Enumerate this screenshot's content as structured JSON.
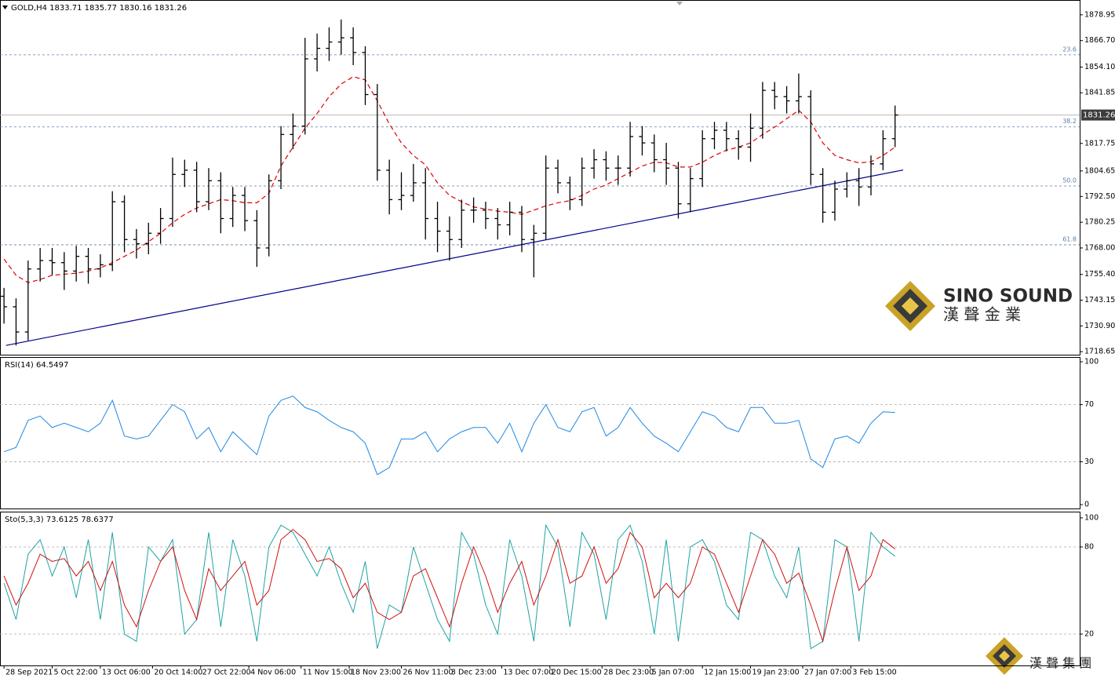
{
  "chart_data": [
    {
      "type": "ohlc",
      "title": "GOLD,H4  1833.71 1835.77 1830.16 1831.26",
      "color": "#000000",
      "x": [
        1,
        4,
        7,
        10,
        13,
        16,
        19,
        22,
        25,
        28,
        31,
        34,
        37,
        40,
        43,
        46,
        49,
        52,
        55,
        58,
        61,
        64,
        67,
        70,
        73,
        76,
        79,
        82,
        85,
        88,
        91,
        94,
        97,
        100,
        103,
        106,
        109,
        112,
        115,
        118,
        121,
        124,
        127,
        130,
        133,
        136,
        139,
        142,
        145,
        148,
        151,
        154,
        157,
        160,
        163,
        166,
        169,
        172,
        175,
        178,
        181,
        184,
        187,
        190,
        193,
        196,
        199,
        202,
        205,
        208,
        211,
        214,
        217,
        220,
        223
      ],
      "open": [
        1745,
        1740,
        1728,
        1758,
        1762,
        1761,
        1757,
        1764,
        1758,
        1760,
        1790,
        1772,
        1770,
        1775,
        1782,
        1803,
        1805,
        1790,
        1800,
        1782,
        1793,
        1781,
        1768,
        1800,
        1822,
        1826,
        1858,
        1863,
        1866,
        1868,
        1861,
        1841,
        1805,
        1791,
        1793,
        1799,
        1782,
        1776,
        1772,
        1786,
        1786,
        1782,
        1779,
        1785,
        1772,
        1775,
        1806,
        1799,
        1791,
        1806,
        1810,
        1806,
        1806,
        1821,
        1818,
        1810,
        1806,
        1789,
        1801,
        1820,
        1824,
        1820,
        1816,
        1825,
        1843,
        1840,
        1838,
        1840,
        1803,
        1785,
        1796,
        1800,
        1797,
        1808,
        1820
      ],
      "high": [
        1749,
        1744,
        1762,
        1768,
        1768,
        1766,
        1769,
        1768,
        1765,
        1795,
        1793,
        1777,
        1780,
        1787,
        1811,
        1810,
        1809,
        1806,
        1804,
        1797,
        1797,
        1786,
        1803,
        1826,
        1832,
        1868,
        1870,
        1873,
        1876.7,
        1873,
        1864,
        1846,
        1810,
        1804,
        1808,
        1806,
        1790,
        1783,
        1791,
        1792,
        1790,
        1787,
        1790,
        1788,
        1779,
        1812,
        1810,
        1802,
        1811,
        1815,
        1814,
        1812,
        1828,
        1826,
        1822,
        1818,
        1809,
        1806,
        1824,
        1828,
        1828,
        1824,
        1832,
        1847,
        1847,
        1845,
        1851,
        1843,
        1806,
        1800,
        1804,
        1806,
        1812,
        1824,
        1835.77
      ],
      "low": [
        1732,
        1721.6,
        1724,
        1752,
        1755,
        1748,
        1752,
        1751,
        1754,
        1757,
        1766,
        1763,
        1765,
        1770,
        1778,
        1797,
        1785,
        1786,
        1775,
        1778,
        1776,
        1759,
        1764,
        1796,
        1815,
        1822,
        1852,
        1857,
        1860,
        1855,
        1836,
        1800,
        1784,
        1786,
        1790,
        1772,
        1766,
        1762,
        1768,
        1780,
        1777,
        1772,
        1774,
        1766,
        1754,
        1772,
        1794,
        1786,
        1788,
        1801,
        1800,
        1798,
        1802,
        1812,
        1804,
        1798,
        1782,
        1785,
        1797,
        1815,
        1814,
        1810,
        1809,
        1820,
        1834,
        1832,
        1832,
        1798,
        1780,
        1781,
        1792,
        1788,
        1793,
        1805,
        1816
      ],
      "close": [
        1740,
        1728,
        1758,
        1762,
        1761,
        1757,
        1764,
        1758,
        1760,
        1790,
        1772,
        1770,
        1775,
        1782,
        1803,
        1805,
        1790,
        1800,
        1782,
        1793,
        1781,
        1768,
        1800,
        1822,
        1826,
        1858,
        1863,
        1866,
        1868,
        1861,
        1841,
        1805,
        1791,
        1793,
        1799,
        1782,
        1776,
        1772,
        1786,
        1786,
        1782,
        1779,
        1785,
        1772,
        1775,
        1806,
        1799,
        1791,
        1806,
        1810,
        1806,
        1806,
        1821,
        1818,
        1810,
        1806,
        1789,
        1801,
        1820,
        1824,
        1820,
        1816,
        1825,
        1843,
        1840,
        1838,
        1840,
        1803,
        1785,
        1796,
        1800,
        1797,
        1808,
        1820,
        1831.26
      ],
      "moving_average": [
        1762.7,
        1755,
        1751.5,
        1753,
        1755,
        1755.5,
        1756,
        1757,
        1758.5,
        1761,
        1764,
        1767,
        1771,
        1775,
        1780,
        1784,
        1787,
        1789,
        1791,
        1790.5,
        1789.5,
        1789.5,
        1794,
        1807,
        1816,
        1825,
        1832,
        1840,
        1846,
        1849.5,
        1848,
        1838,
        1827,
        1818,
        1812,
        1807.5,
        1799,
        1793,
        1790,
        1787.5,
        1786.5,
        1785.5,
        1785,
        1784,
        1786,
        1788,
        1789.5,
        1790.5,
        1793,
        1796,
        1798,
        1801,
        1804,
        1807,
        1808.8,
        1808.5,
        1806.5,
        1806.5,
        1808.8,
        1812,
        1814.5,
        1816,
        1818,
        1822,
        1825.5,
        1829.5,
        1833.5,
        1828,
        1818,
        1812,
        1810,
        1808.5,
        1809,
        1812,
        1816
      ],
      "moving_average_color": "#dd0000",
      "trendline": {
        "x": [
          1.5,
          225
        ],
        "y": [
          1721.6,
          1805.1
        ],
        "color": "#00008b"
      },
      "levels": [
        {
          "value": 1859.9,
          "label": "23.6"
        },
        {
          "value": 1825.6,
          "label": "38.2"
        },
        {
          "value": 1797.5,
          "label": "50.0"
        },
        {
          "value": 1769.5,
          "label": "61.8"
        }
      ],
      "last_price": 1831.26,
      "xlim": [
        0,
        269
      ],
      "ylim": [
        1717.2,
        1886.0
      ],
      "yticks": [
        1878.95,
        {
          "value": 1866.7,
          "label": "1866.70"
        },
        {
          "value": 1854.1,
          "label": "1854.10"
        },
        1841.85,
        1817.75,
        1804.65,
        {
          "value": 1792.5,
          "label": "1792.50"
        },
        1780.25,
        {
          "value": 1768,
          "label": "1768.00"
        },
        {
          "value": 1755.4,
          "label": "1755.40"
        },
        1743.15,
        {
          "value": 1730.9,
          "label": "1730.90"
        },
        1718.65
      ],
      "xticks": [
        {
          "value": 1,
          "label": "28 Sep 2021"
        },
        {
          "value": 13,
          "label": "5 Oct 22:00"
        },
        {
          "value": 25,
          "label": "13 Oct 06:00"
        },
        {
          "value": 38,
          "label": "20 Oct 14:00"
        },
        {
          "value": 50,
          "label": "27 Oct 22:00"
        },
        {
          "value": 62,
          "label": "4 Nov 06:00"
        },
        {
          "value": 75,
          "label": "11 Nov 15:00"
        },
        {
          "value": 87,
          "label": "18 Nov 23:00"
        },
        {
          "value": 100,
          "label": "26 Nov 11:00"
        },
        {
          "value": 112,
          "label": "3 Dec 23:00"
        },
        {
          "value": 125,
          "label": "13 Dec 07:00"
        },
        {
          "value": 137,
          "label": "20 Dec 15:00"
        },
        {
          "value": 150,
          "label": "28 Dec 23:00"
        },
        {
          "value": 162,
          "label": "5 Jan 07:00"
        },
        {
          "value": 175,
          "label": "12 Jan 15:00"
        },
        {
          "value": 187,
          "label": "19 Jan 23:00"
        },
        {
          "value": 200,
          "label": "27 Jan 07:00"
        },
        {
          "value": 212,
          "label": "3 Feb 15:00"
        }
      ]
    },
    {
      "type": "line",
      "title": "RSI(14) 64.5497",
      "ylim": [
        -2.7,
        103.3
      ],
      "yticks": [
        0,
        30,
        70,
        100
      ],
      "levels": [
        30,
        70
      ],
      "series": [
        {
          "color": "#1e88e5",
          "values": [
            37,
            40,
            59,
            62,
            54,
            57,
            54,
            51,
            57,
            73,
            48,
            46,
            48,
            59,
            70,
            65,
            46,
            54,
            37,
            51,
            43,
            35,
            62,
            73,
            76,
            68,
            65,
            59,
            54,
            51,
            43,
            21,
            26,
            46,
            46,
            51,
            37,
            46,
            51,
            54,
            54,
            43,
            57,
            37,
            57,
            70,
            54,
            51,
            65,
            68,
            48,
            54,
            68,
            57,
            48,
            43,
            37,
            51,
            65,
            62,
            54,
            51,
            68,
            68,
            57,
            57,
            59,
            32,
            26,
            46,
            48,
            43,
            57,
            65,
            64.5
          ]
        }
      ]
    },
    {
      "type": "line",
      "title": "Sto(5,3,3) 73.6125 78.6377",
      "ylim": [
        -1.6,
        104.3
      ],
      "yticks": [
        20,
        80,
        100
      ],
      "levels": [
        20,
        80
      ],
      "series": [
        {
          "color": "#1fa3a3",
          "values": [
            55,
            30,
            75,
            85,
            60,
            80,
            45,
            85,
            30,
            90,
            20,
            15,
            80,
            70,
            85,
            20,
            30,
            90,
            25,
            85,
            60,
            15,
            80,
            95,
            90,
            75,
            60,
            80,
            55,
            35,
            70,
            10,
            40,
            35,
            80,
            55,
            30,
            15,
            90,
            75,
            40,
            20,
            85,
            60,
            15,
            95,
            80,
            25,
            90,
            75,
            30,
            85,
            95,
            70,
            20,
            85,
            15,
            80,
            85,
            70,
            40,
            30,
            90,
            85,
            60,
            45,
            80,
            10,
            15,
            85,
            80,
            15,
            90,
            80,
            73.6
          ]
        },
        {
          "color": "#d01010",
          "values": [
            60,
            40,
            55,
            75,
            70,
            72,
            60,
            70,
            50,
            70,
            40,
            25,
            50,
            70,
            80,
            50,
            30,
            65,
            50,
            60,
            70,
            40,
            50,
            85,
            92,
            85,
            70,
            72,
            65,
            45,
            55,
            35,
            30,
            35,
            60,
            65,
            45,
            25,
            55,
            80,
            60,
            35,
            55,
            70,
            40,
            60,
            85,
            55,
            60,
            80,
            55,
            65,
            90,
            80,
            45,
            55,
            45,
            55,
            80,
            75,
            55,
            35,
            60,
            85,
            75,
            55,
            62,
            40,
            15,
            50,
            80,
            50,
            60,
            85,
            78.6
          ]
        }
      ]
    }
  ],
  "watermark": {
    "brand": "SINO SOUND",
    "brand_chinese": "漢 聲 金 業",
    "footer": "漢 聲 集 團"
  }
}
